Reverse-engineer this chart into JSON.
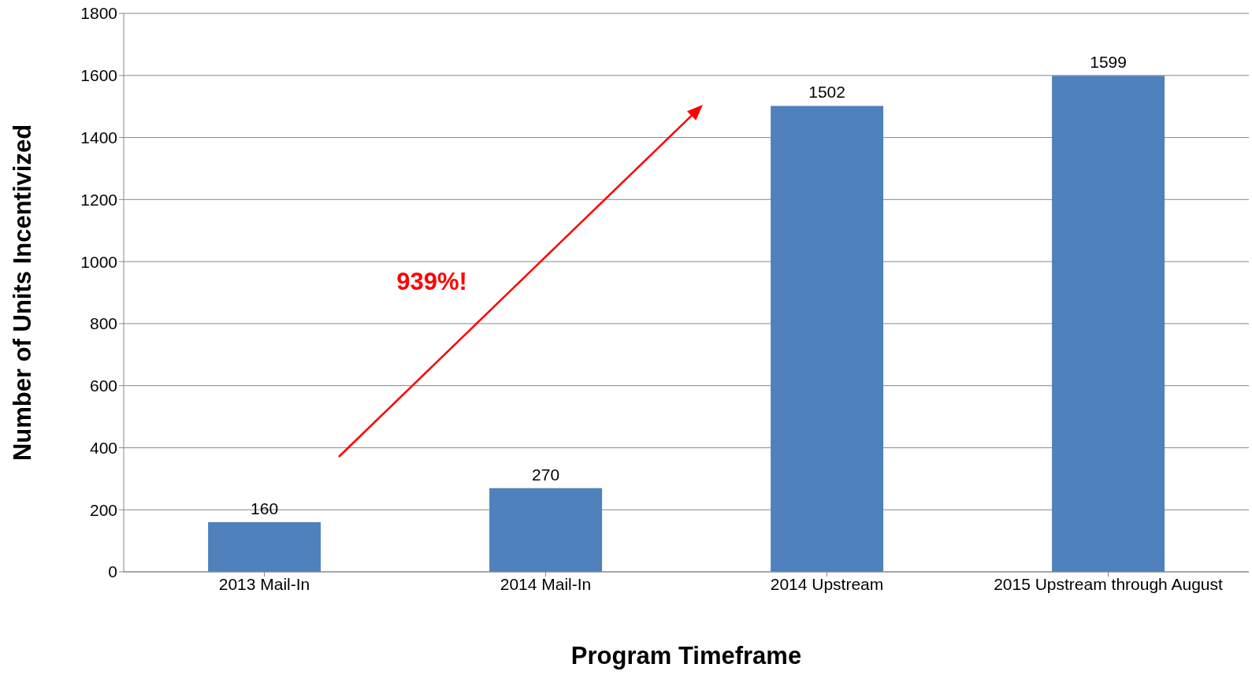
{
  "chart_data": {
    "type": "bar",
    "xlabel": "Program Timeframe",
    "ylabel": "Number of Units Incentivized",
    "categories": [
      "2013 Mail-In",
      "2014 Mail-In",
      "2014 Upstream",
      "2015 Upstream through August"
    ],
    "values": [
      160,
      270,
      1502,
      1599
    ],
    "color": "#4f81bd",
    "ylim": [
      0,
      1800
    ],
    "yticks": [
      0,
      200,
      400,
      600,
      800,
      1000,
      1200,
      1400,
      1600,
      1800
    ],
    "grid": "y",
    "data_labels": true,
    "legend": false,
    "annotations": [
      "939%!"
    ]
  }
}
